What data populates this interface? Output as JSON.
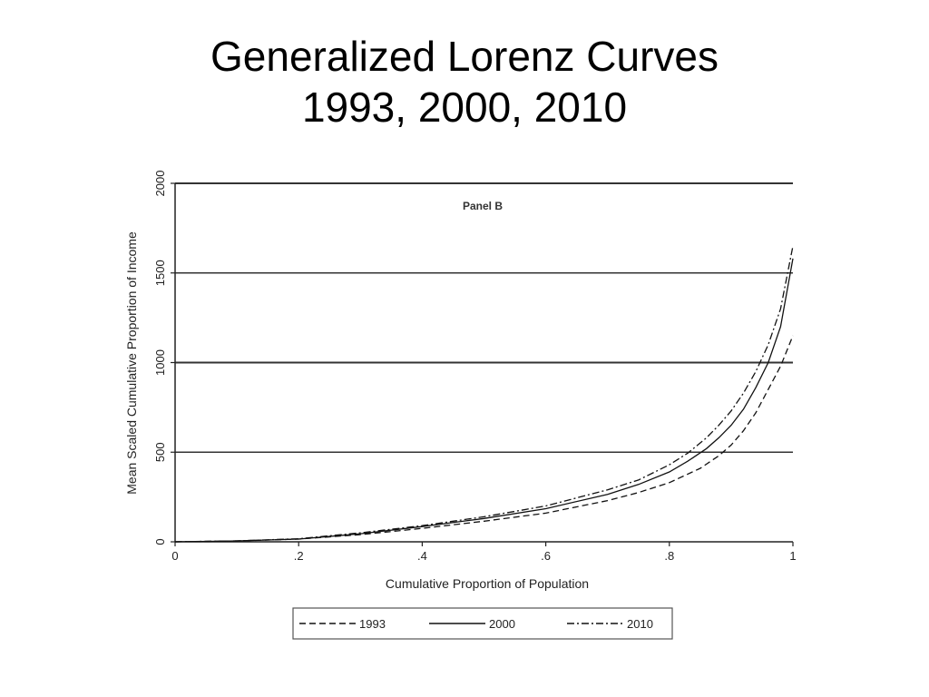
{
  "slide": {
    "title_line1": "Generalized Lorenz Curves",
    "title_line2": "1993, 2000, 2010"
  },
  "chart_data": {
    "type": "line",
    "annotation": "Panel B",
    "xlabel": "Cumulative Proportion of Population",
    "ylabel": "Mean Scaled Cumulative Proportion of Income",
    "xlim": [
      0,
      1
    ],
    "ylim": [
      0,
      2000
    ],
    "xticks": [
      0,
      0.2,
      0.4,
      0.6,
      0.8,
      1
    ],
    "xtick_labels": [
      "0",
      ".2",
      ".4",
      ".6",
      ".8",
      "1"
    ],
    "yticks": [
      0,
      500,
      1000,
      1500,
      2000
    ],
    "ytick_labels": [
      "0",
      "500",
      "1000",
      "1500",
      "2000"
    ],
    "grid": "horizontal",
    "legend_position": "bottom",
    "series": [
      {
        "name": "1993",
        "style": "dashed",
        "color": "#111111",
        "x": [
          0,
          0.1,
          0.2,
          0.3,
          0.4,
          0.5,
          0.6,
          0.7,
          0.75,
          0.8,
          0.85,
          0.88,
          0.9,
          0.92,
          0.94,
          0.96,
          0.98,
          1.0
        ],
        "y": [
          0,
          5,
          15,
          40,
          75,
          115,
          160,
          230,
          275,
          330,
          410,
          480,
          540,
          620,
          720,
          850,
          980,
          1150
        ]
      },
      {
        "name": "2000",
        "style": "solid",
        "color": "#111111",
        "x": [
          0,
          0.1,
          0.2,
          0.3,
          0.4,
          0.5,
          0.6,
          0.7,
          0.75,
          0.8,
          0.83,
          0.86,
          0.88,
          0.9,
          0.92,
          0.94,
          0.96,
          0.98,
          1.0
        ],
        "y": [
          0,
          5,
          15,
          45,
          85,
          130,
          185,
          265,
          320,
          390,
          450,
          520,
          580,
          650,
          740,
          860,
          1000,
          1200,
          1580
        ]
      },
      {
        "name": "2010",
        "style": "dashdot",
        "color": "#111111",
        "x": [
          0,
          0.1,
          0.2,
          0.3,
          0.4,
          0.5,
          0.6,
          0.7,
          0.75,
          0.8,
          0.83,
          0.86,
          0.88,
          0.9,
          0.92,
          0.94,
          0.96,
          0.98,
          1.0
        ],
        "y": [
          0,
          5,
          17,
          50,
          90,
          140,
          200,
          290,
          345,
          430,
          495,
          580,
          650,
          730,
          830,
          950,
          1100,
          1300,
          1650
        ]
      }
    ]
  }
}
